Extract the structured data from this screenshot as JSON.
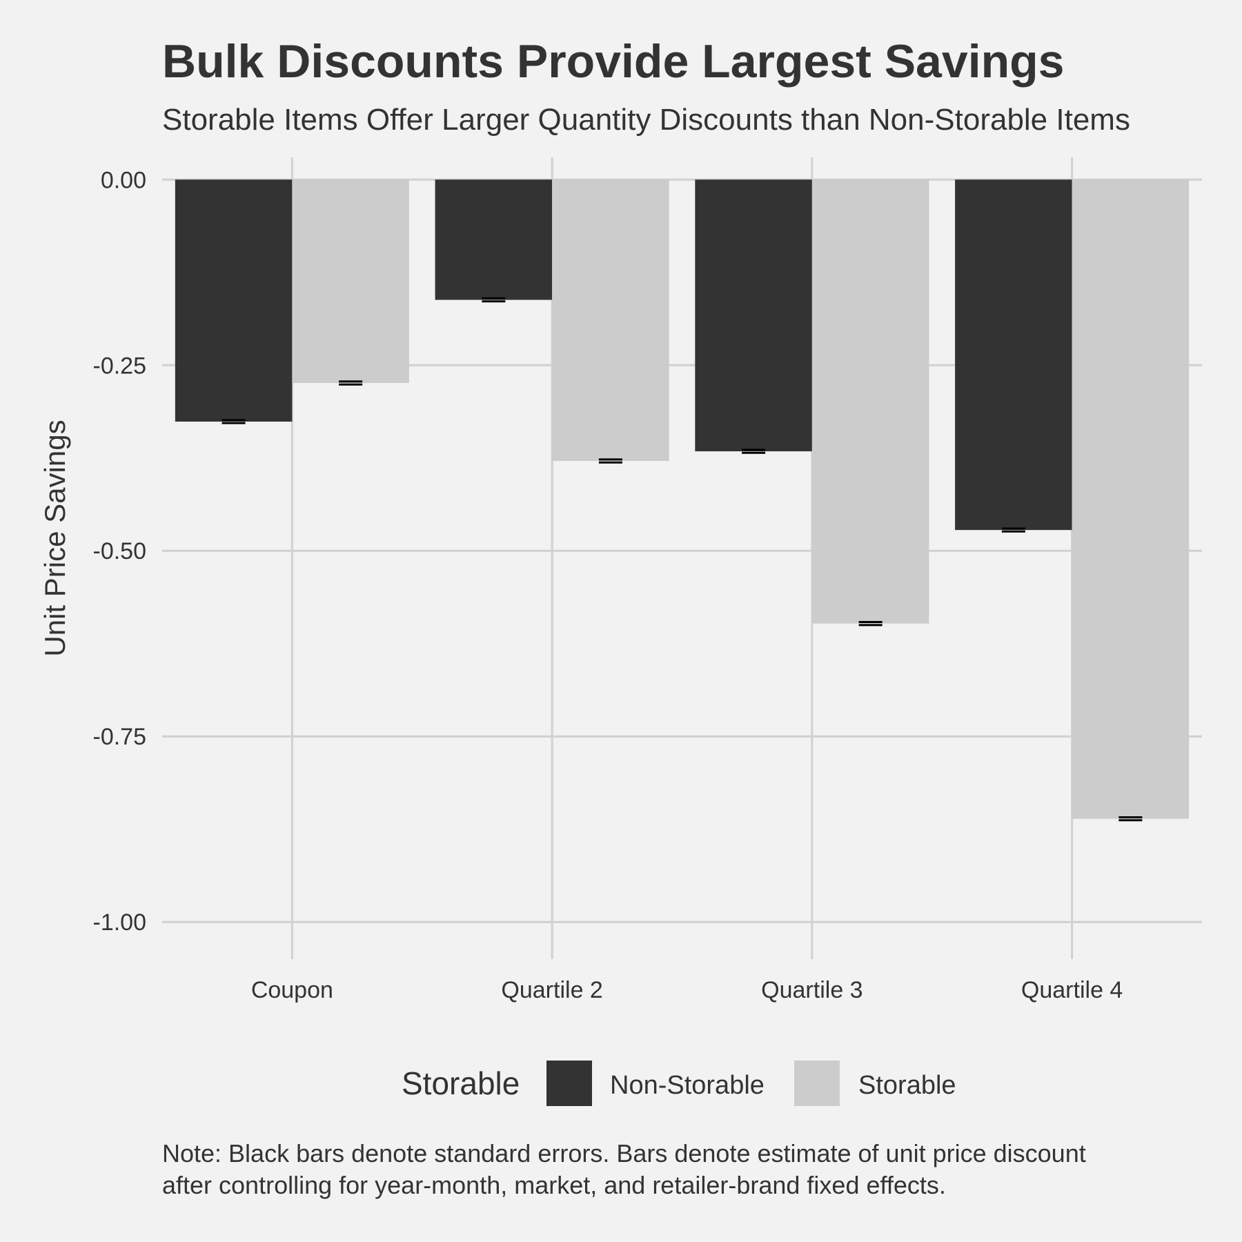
{
  "chart_data": {
    "type": "bar",
    "title": "Bulk Discounts Provide Largest Savings",
    "subtitle": "Storable Items Offer Larger Quantity Discounts than Non-Storable Items",
    "xlabel": "",
    "ylabel": "Unit Price Savings",
    "ylim": [
      -1.05,
      0.03
    ],
    "yticks": [
      0.0,
      -0.25,
      -0.5,
      -0.75,
      -1.0
    ],
    "ytick_labels": [
      "0.00",
      "-0.25",
      "-0.50",
      "-0.75",
      "-1.00"
    ],
    "categories": [
      "Coupon",
      "Quartile 2",
      "Quartile 3",
      "Quartile 4"
    ],
    "series": [
      {
        "name": "Non-Storable",
        "color": "#333333",
        "values": [
          -0.326,
          -0.162,
          -0.366,
          -0.472
        ],
        "se": [
          0.002,
          0.002,
          0.002,
          0.002
        ]
      },
      {
        "name": "Storable",
        "color": "#cccccc",
        "values": [
          -0.274,
          -0.379,
          -0.598,
          -0.861
        ],
        "se": [
          0.002,
          0.002,
          0.002,
          0.002
        ]
      }
    ],
    "legend": {
      "title": "Storable",
      "position": "bottom",
      "entries": [
        "Non-Storable",
        "Storable"
      ]
    },
    "caption_lines": [
      "Note: Black bars denote standard errors. Bars denote estimate of unit price discount",
      "after controlling for year-month, market, and retailer-brand fixed effects."
    ]
  }
}
